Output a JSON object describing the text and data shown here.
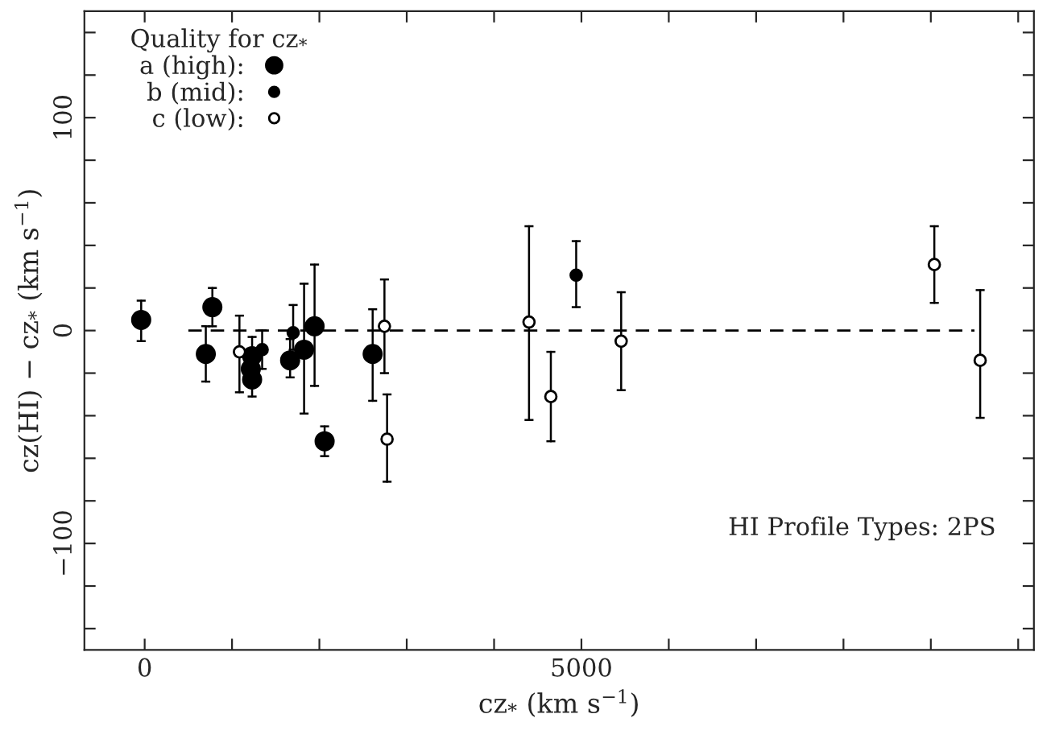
{
  "chart_data": {
    "type": "scatter",
    "xlabel": "cz$_{*}$ (km s$^{−1}$)",
    "ylabel": "cz(HI) − cz$_{*}$ (km s$^{−1}$)",
    "legend_title": "Quality for cz$_{*}$",
    "legend": "top left",
    "marker": "circle",
    "xlim": [
      -690,
      10180
    ],
    "ylim": [
      -150,
      150
    ],
    "xticks": [
      0,
      {
        "value": 1000,
        "label": null
      },
      {
        "value": 2000,
        "label": null
      },
      {
        "value": 3000,
        "label": null
      },
      {
        "value": 4000,
        "label": null
      },
      5000,
      {
        "value": 6000,
        "label": null
      },
      {
        "value": 7000,
        "label": null
      },
      {
        "value": 8000,
        "label": null
      },
      {
        "value": 9000,
        "label": null
      },
      {
        "value": 10000,
        "label": null
      }
    ],
    "yticks": [
      {
        "value": -140,
        "label": null
      },
      {
        "value": -120,
        "label": null
      },
      {
        "value": -100,
        "label": "−100"
      },
      {
        "value": -80,
        "label": null
      },
      {
        "value": -60,
        "label": null
      },
      {
        "value": -40,
        "label": null
      },
      {
        "value": -20,
        "label": null
      },
      0,
      {
        "value": 20,
        "label": null
      },
      {
        "value": 40,
        "label": null
      },
      {
        "value": 60,
        "label": null
      },
      {
        "value": 80,
        "label": null
      },
      100,
      {
        "value": 120,
        "label": null
      },
      {
        "value": 140,
        "label": null
      }
    ],
    "grid": false,
    "annotations": [
      "HI Profile Types: 2PS"
    ],
    "series": [
      {
        "name": "a (high):",
        "color": "#000000",
        "x": [
          -40,
          700,
          775,
          1230,
          1215,
          1230,
          1665,
          1825,
          1945,
          2060,
          2610
        ],
        "values": [
          5,
          -11,
          11,
          -12,
          -18,
          -23,
          -14,
          -9,
          2,
          -52,
          -11
        ],
        "errors": [
          [
            -5,
            14
          ],
          [
            -24,
            2
          ],
          [
            2,
            20
          ],
          [
            -12,
            -3
          ],
          [
            -26,
            -10
          ],
          [
            -31,
            -23
          ],
          [
            -22,
            -4
          ],
          [
            -39,
            22
          ],
          [
            -26,
            31
          ],
          [
            -59,
            -45
          ],
          [
            -33,
            10
          ]
        ]
      },
      {
        "name": "b (mid):",
        "color": "#000000",
        "x": [
          1345,
          1700,
          4940
        ],
        "values": [
          -9,
          -1,
          26
        ],
        "errors": [
          [
            -18,
            0
          ],
          [
            -9,
            12
          ],
          [
            11,
            42
          ]
        ]
      },
      {
        "name": "c (low):",
        "color": "#000000",
        "x": [
          1085,
          2745,
          2775,
          4400,
          4650,
          5455,
          9040,
          9565
        ],
        "values": [
          -10,
          2,
          -51,
          4,
          -31,
          -5,
          31,
          -14
        ],
        "errors": [
          [
            -29,
            7
          ],
          [
            -20,
            24
          ],
          [
            -71,
            -30
          ],
          [
            -42,
            49
          ],
          [
            -52,
            -10
          ],
          [
            -28,
            18
          ],
          [
            13,
            49
          ],
          [
            -41,
            19
          ]
        ]
      },
      {
        "type": "line",
        "color": "#000000",
        "line_style": "dashed",
        "marker": "none",
        "x": [
          500,
          9500
        ],
        "values": [
          0,
          0
        ]
      }
    ]
  }
}
